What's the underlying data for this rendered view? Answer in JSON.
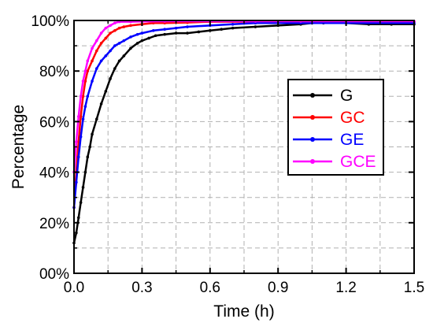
{
  "chart_data": {
    "type": "line",
    "xlabel": "Time (h)",
    "ylabel": "Percentage",
    "xlim": [
      0,
      1.5
    ],
    "ylim": [
      0,
      100
    ],
    "x_ticks": [
      {
        "value": 0,
        "label": "0.0"
      },
      {
        "value": 0.3,
        "label": "0.3"
      },
      {
        "value": 0.6,
        "label": "0.6"
      },
      {
        "value": 0.9,
        "label": "0.9"
      },
      {
        "value": 1.2,
        "label": "1.2"
      },
      {
        "value": 1.5,
        "label": "1.5"
      }
    ],
    "y_ticks": [
      {
        "value": 0,
        "label": "00%"
      },
      {
        "value": 20,
        "label": "20%"
      },
      {
        "value": 40,
        "label": "40%"
      },
      {
        "value": 60,
        "label": "60%"
      },
      {
        "value": 80,
        "label": "80%"
      },
      {
        "value": 100,
        "label": "100%"
      }
    ],
    "grid": true,
    "legend_position": "center-right",
    "series": [
      {
        "name": "G",
        "color": "#000000",
        "x": [
          0,
          0.01,
          0.02,
          0.03,
          0.04,
          0.05,
          0.06,
          0.07,
          0.08,
          0.1,
          0.12,
          0.14,
          0.16,
          0.18,
          0.2,
          0.22,
          0.25,
          0.28,
          0.3,
          0.33,
          0.36,
          0.4,
          0.45,
          0.5,
          0.55,
          0.6,
          0.65,
          0.7,
          0.8,
          0.9,
          1.0,
          1.05,
          1.1,
          1.2,
          1.3,
          1.4,
          1.5
        ],
        "values": [
          12,
          16,
          22,
          28,
          34,
          40,
          46,
          50,
          55,
          61,
          67,
          72,
          77,
          81,
          84,
          86,
          89,
          91,
          92,
          93,
          94,
          94.5,
          95,
          95,
          95.5,
          96,
          96.5,
          97,
          97.5,
          98,
          98.5,
          99,
          99,
          99,
          98.5,
          98.5,
          98.5
        ]
      },
      {
        "name": "GC",
        "color": "#ff0000",
        "x": [
          0,
          0.01,
          0.02,
          0.03,
          0.04,
          0.05,
          0.06,
          0.08,
          0.1,
          0.12,
          0.14,
          0.16,
          0.18,
          0.2,
          0.22,
          0.25,
          0.3,
          0.35,
          0.4,
          0.5,
          0.6,
          0.8,
          1.0,
          1.2,
          1.5
        ],
        "values": [
          26,
          40,
          52,
          62,
          70,
          76,
          80,
          84,
          88,
          91,
          93,
          95,
          96,
          97,
          97.5,
          98,
          98.5,
          99,
          99,
          99.2,
          99.5,
          99.5,
          99.5,
          99.5,
          99.5
        ]
      },
      {
        "name": "GE",
        "color": "#0000ff",
        "x": [
          0,
          0.01,
          0.02,
          0.03,
          0.04,
          0.05,
          0.06,
          0.08,
          0.1,
          0.12,
          0.14,
          0.16,
          0.18,
          0.2,
          0.22,
          0.25,
          0.28,
          0.3,
          0.35,
          0.4,
          0.45,
          0.5,
          0.6,
          0.7,
          0.8,
          1.0,
          1.2,
          1.5
        ],
        "values": [
          26,
          36,
          46,
          54,
          61,
          66,
          70,
          76,
          81,
          84,
          86,
          88,
          90,
          91,
          92,
          93.5,
          94.5,
          95,
          96,
          96.5,
          97,
          97.5,
          98,
          98.5,
          99,
          99,
          99,
          99
        ]
      },
      {
        "name": "GCE",
        "color": "#ff00ff",
        "x": [
          0,
          0.01,
          0.02,
          0.03,
          0.04,
          0.05,
          0.06,
          0.08,
          0.1,
          0.12,
          0.14,
          0.16,
          0.18,
          0.2,
          0.25,
          0.3,
          0.4,
          0.6,
          0.8,
          1.0,
          1.2,
          1.5
        ],
        "values": [
          40,
          52,
          62,
          70,
          76,
          80,
          84,
          89,
          92,
          95,
          97,
          98,
          99,
          99.5,
          99.5,
          99.6,
          99.7,
          99.7,
          99.7,
          99.7,
          99.7,
          99.7
        ]
      }
    ]
  }
}
